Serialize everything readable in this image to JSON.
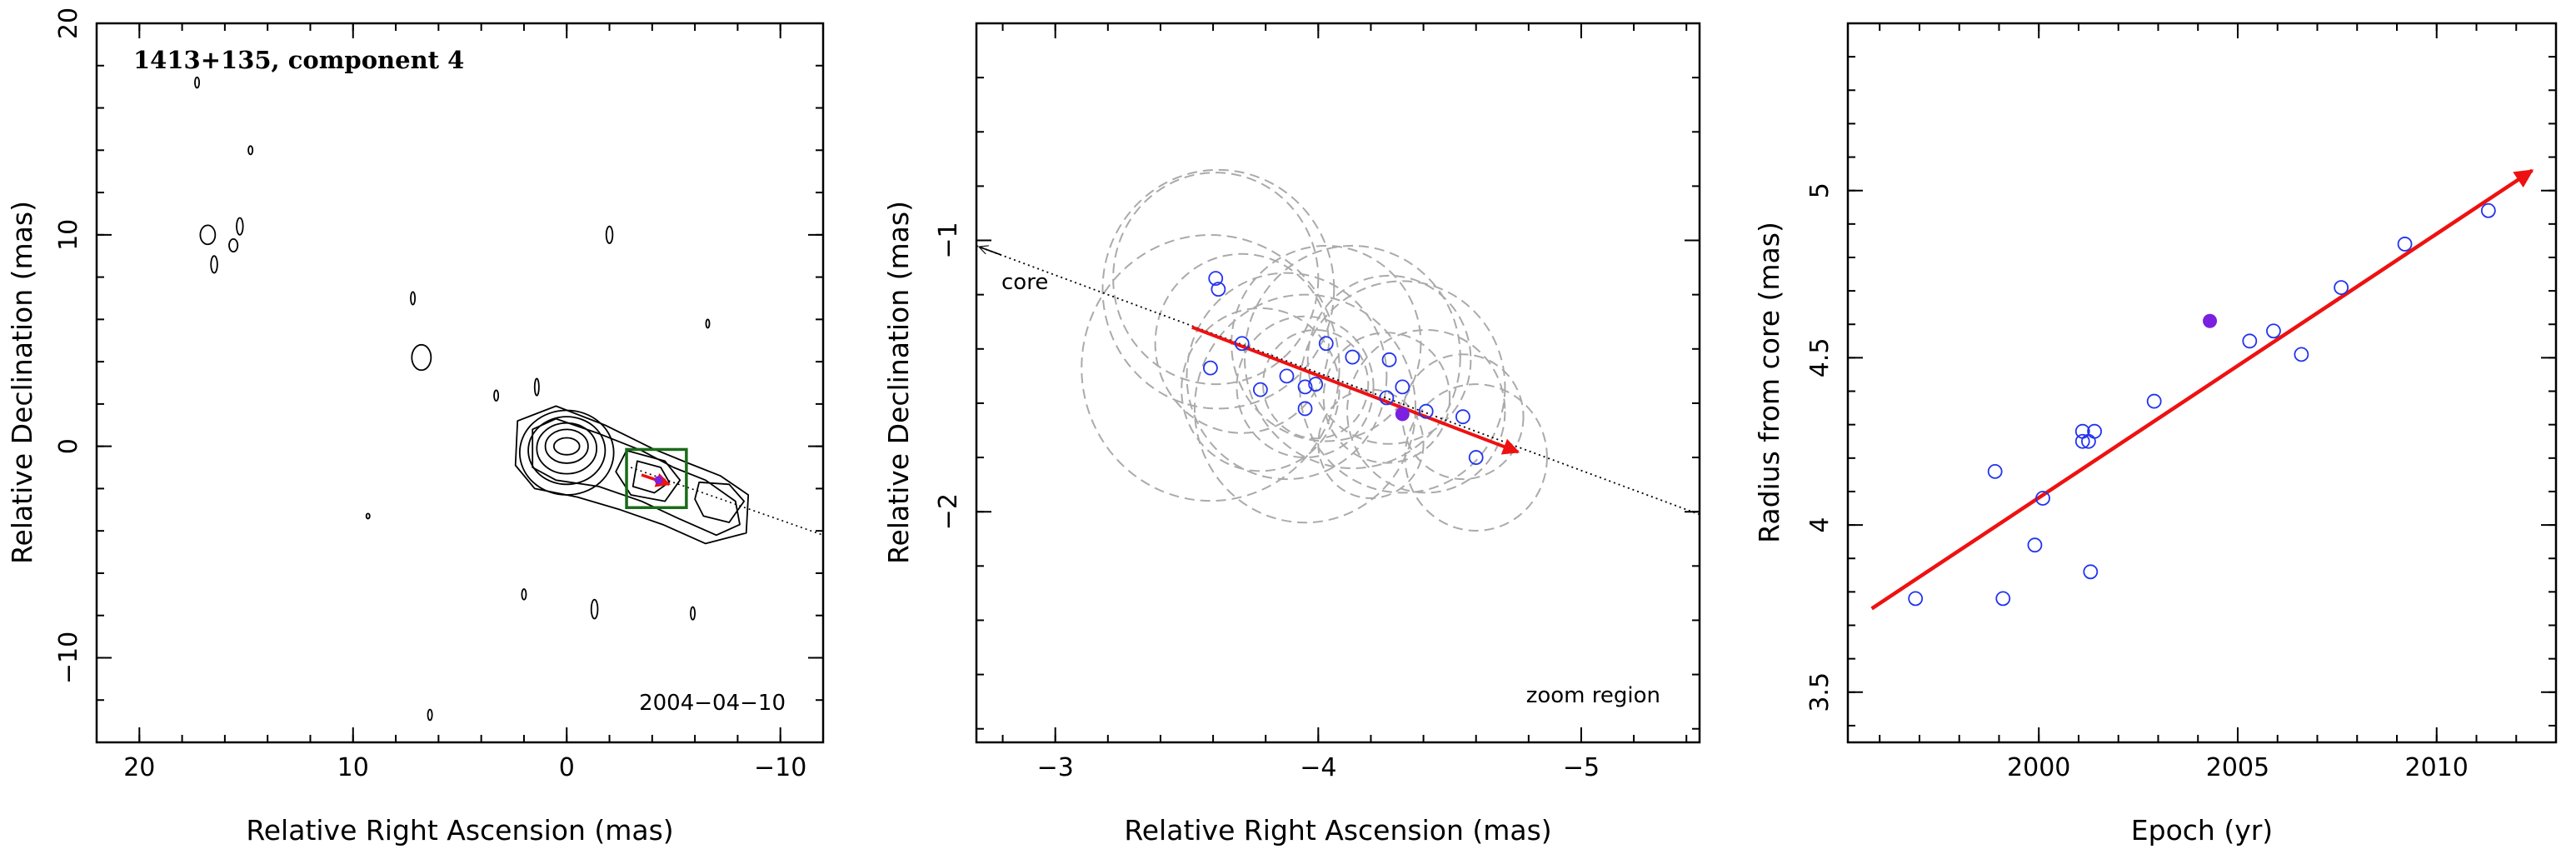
{
  "chart_data": [
    {
      "type": "contour",
      "title": "1413+135, component 4",
      "epoch_label": "2004−04−10",
      "xlabel": "Relative Right Ascension (mas)",
      "ylabel": "Relative Declination (mas)",
      "xlim": [
        22,
        -12
      ],
      "ylim": [
        -14,
        20
      ],
      "xticks": [
        20,
        10,
        0,
        -10
      ],
      "yticks": [
        -10,
        0,
        10,
        20
      ],
      "xtick_labels": [
        "20",
        "10",
        "0",
        "−10"
      ],
      "ytick_labels": [
        "−10",
        "0",
        "10",
        "20"
      ],
      "colors": {
        "contour": "#000000",
        "zoom_box": "#1a6b1a",
        "velocity": "#ee1111",
        "marker": "#7b1fe0"
      },
      "core_contours": [
        {
          "x": 0,
          "y": 0,
          "rx": 0.6,
          "ry": 0.4
        },
        {
          "x": 0,
          "y": 0,
          "rx": 1.0,
          "ry": 0.8
        },
        {
          "x": 0,
          "y": -0.1,
          "rx": 1.4,
          "ry": 1.2
        },
        {
          "x": 0,
          "y": -0.2,
          "rx": 1.8,
          "ry": 1.6
        },
        {
          "x": 0,
          "y": -0.3,
          "rx": 2.2,
          "ry": 2.0
        }
      ],
      "jet_contours": [
        [
          [
            1.6,
            0.8
          ],
          [
            0.5,
            1.3
          ],
          [
            -1.5,
            0.6
          ],
          [
            -3.5,
            -0.2
          ],
          [
            -5,
            -1.0
          ],
          [
            -6.5,
            -1.6
          ],
          [
            -7.9,
            -2.6
          ],
          [
            -8.1,
            -3.7
          ],
          [
            -7,
            -4.2
          ],
          [
            -5.2,
            -3.4
          ],
          [
            -3.5,
            -2.6
          ],
          [
            -1.5,
            -1.9
          ],
          [
            0.5,
            -1.6
          ],
          [
            1.6,
            -1.0
          ]
        ],
        [
          [
            2.3,
            1.2
          ],
          [
            0.5,
            1.9
          ],
          [
            -1.8,
            1.0
          ],
          [
            -4,
            -0.1
          ],
          [
            -5.7,
            -0.8
          ],
          [
            -7.2,
            -1.4
          ],
          [
            -8.5,
            -2.3
          ],
          [
            -8.4,
            -4.1
          ],
          [
            -6.5,
            -4.6
          ],
          [
            -4.5,
            -3.7
          ],
          [
            -2.5,
            -3.0
          ],
          [
            -0.5,
            -2.4
          ],
          [
            1.5,
            -2.0
          ],
          [
            2.4,
            -0.9
          ]
        ],
        [
          [
            -2.8,
            -0.2
          ],
          [
            -4.6,
            -0.7
          ],
          [
            -5.3,
            -1.6
          ],
          [
            -4.6,
            -2.6
          ],
          [
            -3,
            -2.3
          ],
          [
            -2.3,
            -1.2
          ]
        ],
        [
          [
            -3.3,
            -0.7
          ],
          [
            -4.4,
            -1.0
          ],
          [
            -4.8,
            -1.7
          ],
          [
            -4.1,
            -2.2
          ],
          [
            -3.1,
            -1.9
          ]
        ],
        [
          [
            -6.2,
            -1.7
          ],
          [
            -7.6,
            -1.8
          ],
          [
            -8.3,
            -2.6
          ],
          [
            -7.6,
            -3.6
          ],
          [
            -6.4,
            -3.3
          ],
          [
            -6.0,
            -2.5
          ]
        ]
      ],
      "noise_contours": [
        {
          "x": 17.3,
          "y": 17.2,
          "rx": 0.1,
          "ry": 0.25
        },
        {
          "x": 14.8,
          "y": 14.0,
          "rx": 0.1,
          "ry": 0.2
        },
        {
          "x": 16.8,
          "y": 10.0,
          "rx": 0.35,
          "ry": 0.45
        },
        {
          "x": 15.6,
          "y": 9.5,
          "rx": 0.2,
          "ry": 0.3
        },
        {
          "x": 15.3,
          "y": 10.4,
          "rx": 0.15,
          "ry": 0.4
        },
        {
          "x": 16.5,
          "y": 8.6,
          "rx": 0.15,
          "ry": 0.4
        },
        {
          "x": 7.2,
          "y": 7.0,
          "rx": 0.1,
          "ry": 0.3
        },
        {
          "x": 6.8,
          "y": 4.2,
          "rx": 0.45,
          "ry": 0.6
        },
        {
          "x": 3.3,
          "y": 2.4,
          "rx": 0.1,
          "ry": 0.25
        },
        {
          "x": 1.4,
          "y": 2.8,
          "rx": 0.1,
          "ry": 0.4
        },
        {
          "x": -2.0,
          "y": 10.0,
          "rx": 0.15,
          "ry": 0.4
        },
        {
          "x": -6.6,
          "y": 5.8,
          "rx": 0.08,
          "ry": 0.2
        },
        {
          "x": 9.3,
          "y": -3.3,
          "rx": 0.08,
          "ry": 0.12
        },
        {
          "x": 2.0,
          "y": -7.0,
          "rx": 0.1,
          "ry": 0.25
        },
        {
          "x": -1.3,
          "y": -7.7,
          "rx": 0.15,
          "ry": 0.45
        },
        {
          "x": -5.9,
          "y": -7.9,
          "rx": 0.1,
          "ry": 0.3
        },
        {
          "x": 6.4,
          "y": -12.7,
          "rx": 0.1,
          "ry": 0.25
        }
      ],
      "zoom_box": {
        "x0": -2.8,
        "x1": -5.6,
        "y0": -2.9,
        "y1": -0.15
      },
      "direction_line": [
        [
          -3.0,
          -1.0
        ],
        [
          -12,
          -4.2
        ]
      ],
      "velocity_arrow": {
        "from": [
          -3.5,
          -1.35
        ],
        "to": [
          -4.8,
          -1.8
        ]
      },
      "marker": {
        "x": -4.3,
        "y": -1.6
      }
    },
    {
      "type": "scatter",
      "annotation": "zoom region",
      "core_label": "core",
      "xlabel": "Relative Right Ascension (mas)",
      "ylabel": "Relative Declination (mas)",
      "xlim": [
        -2.7,
        -5.45
      ],
      "ylim": [
        -2.85,
        -0.2
      ],
      "xticks": [
        -3,
        -4,
        -5
      ],
      "yticks": [
        -2,
        -1
      ],
      "xtick_labels": [
        "−3",
        "−4",
        "−5"
      ],
      "ytick_labels": [
        "−2",
        "−1"
      ],
      "colors": {
        "circles": "#aaaaaa",
        "points": "#2233ee",
        "marker": "#7b1fe0",
        "arrow": "#ee1111"
      },
      "points": [
        {
          "x": -3.61,
          "y": -1.14
        },
        {
          "x": -3.62,
          "y": -1.18
        },
        {
          "x": -3.59,
          "y": -1.47
        },
        {
          "x": -3.71,
          "y": -1.38
        },
        {
          "x": -3.78,
          "y": -1.55
        },
        {
          "x": -3.88,
          "y": -1.5
        },
        {
          "x": -3.95,
          "y": -1.54
        },
        {
          "x": -3.95,
          "y": -1.62
        },
        {
          "x": -3.99,
          "y": -1.53
        },
        {
          "x": -4.03,
          "y": -1.38
        },
        {
          "x": -4.13,
          "y": -1.43
        },
        {
          "x": -4.27,
          "y": -1.44
        },
        {
          "x": -4.26,
          "y": -1.58
        },
        {
          "x": -4.32,
          "y": -1.54
        },
        {
          "x": -4.41,
          "y": -1.63
        },
        {
          "x": -4.55,
          "y": -1.65
        },
        {
          "x": -4.6,
          "y": -1.8
        }
      ],
      "circles": [
        {
          "x": -3.61,
          "y": -1.14,
          "r": 0.39
        },
        {
          "x": -3.62,
          "y": -1.18,
          "r": 0.44
        },
        {
          "x": -3.59,
          "y": -1.47,
          "r": 0.49
        },
        {
          "x": -3.71,
          "y": -1.38,
          "r": 0.33
        },
        {
          "x": -3.78,
          "y": -1.55,
          "r": 0.3
        },
        {
          "x": -3.88,
          "y": -1.5,
          "r": 0.38
        },
        {
          "x": -3.95,
          "y": -1.54,
          "r": 0.26
        },
        {
          "x": -3.95,
          "y": -1.62,
          "r": 0.42
        },
        {
          "x": -3.99,
          "y": -1.53,
          "r": 0.2
        },
        {
          "x": -4.03,
          "y": -1.38,
          "r": 0.36
        },
        {
          "x": -4.13,
          "y": -1.43,
          "r": 0.41
        },
        {
          "x": -4.27,
          "y": -1.44,
          "r": 0.31
        },
        {
          "x": -4.26,
          "y": -1.58,
          "r": 0.24
        },
        {
          "x": -4.32,
          "y": -1.54,
          "r": 0.39
        },
        {
          "x": -4.41,
          "y": -1.63,
          "r": 0.3
        },
        {
          "x": -4.55,
          "y": -1.65,
          "r": 0.23
        },
        {
          "x": -4.6,
          "y": -1.8,
          "r": 0.27
        },
        {
          "x": -4.2,
          "y": -1.75,
          "r": 0.2
        }
      ],
      "marker": {
        "x": -4.32,
        "y": -1.64
      },
      "direction_line": [
        [
          -2.7,
          -1.02
        ],
        [
          -5.45,
          -2.01
        ]
      ],
      "velocity_arrow": {
        "from": [
          -3.52,
          -1.32
        ],
        "to": [
          -4.76,
          -1.78
        ]
      }
    },
    {
      "type": "scatter",
      "xlabel": "Epoch (yr)",
      "ylabel": "Radius from core (mas)",
      "xlim": [
        1995.2,
        2013.0
      ],
      "ylim": [
        3.35,
        5.5
      ],
      "xticks": [
        2000,
        2005,
        2010
      ],
      "yticks": [
        3.5,
        4,
        4.5,
        5
      ],
      "xtick_labels": [
        "2000",
        "2005",
        "2010"
      ],
      "ytick_labels": [
        "3.5",
        "4",
        "4.5",
        "5"
      ],
      "colors": {
        "points": "#2233ee",
        "marker": "#7b1fe0",
        "arrow": "#ee1111"
      },
      "points": [
        {
          "x": 1996.9,
          "y": 3.78
        },
        {
          "x": 1998.9,
          "y": 4.16
        },
        {
          "x": 1999.1,
          "y": 3.78
        },
        {
          "x": 1999.9,
          "y": 3.94
        },
        {
          "x": 2000.1,
          "y": 4.08
        },
        {
          "x": 2001.1,
          "y": 4.28
        },
        {
          "x": 2001.1,
          "y": 4.25
        },
        {
          "x": 2001.25,
          "y": 4.25
        },
        {
          "x": 2001.4,
          "y": 4.28
        },
        {
          "x": 2001.3,
          "y": 3.86
        },
        {
          "x": 2002.9,
          "y": 4.37
        },
        {
          "x": 2005.3,
          "y": 4.55
        },
        {
          "x": 2005.9,
          "y": 4.58
        },
        {
          "x": 2006.6,
          "y": 4.51
        },
        {
          "x": 2007.6,
          "y": 4.71
        },
        {
          "x": 2009.2,
          "y": 4.84
        },
        {
          "x": 2011.3,
          "y": 4.94
        }
      ],
      "marker": {
        "x": 2004.3,
        "y": 4.61
      },
      "velocity_arrow": {
        "from": [
          1995.8,
          3.75
        ],
        "to": [
          2012.4,
          5.06
        ]
      }
    }
  ]
}
